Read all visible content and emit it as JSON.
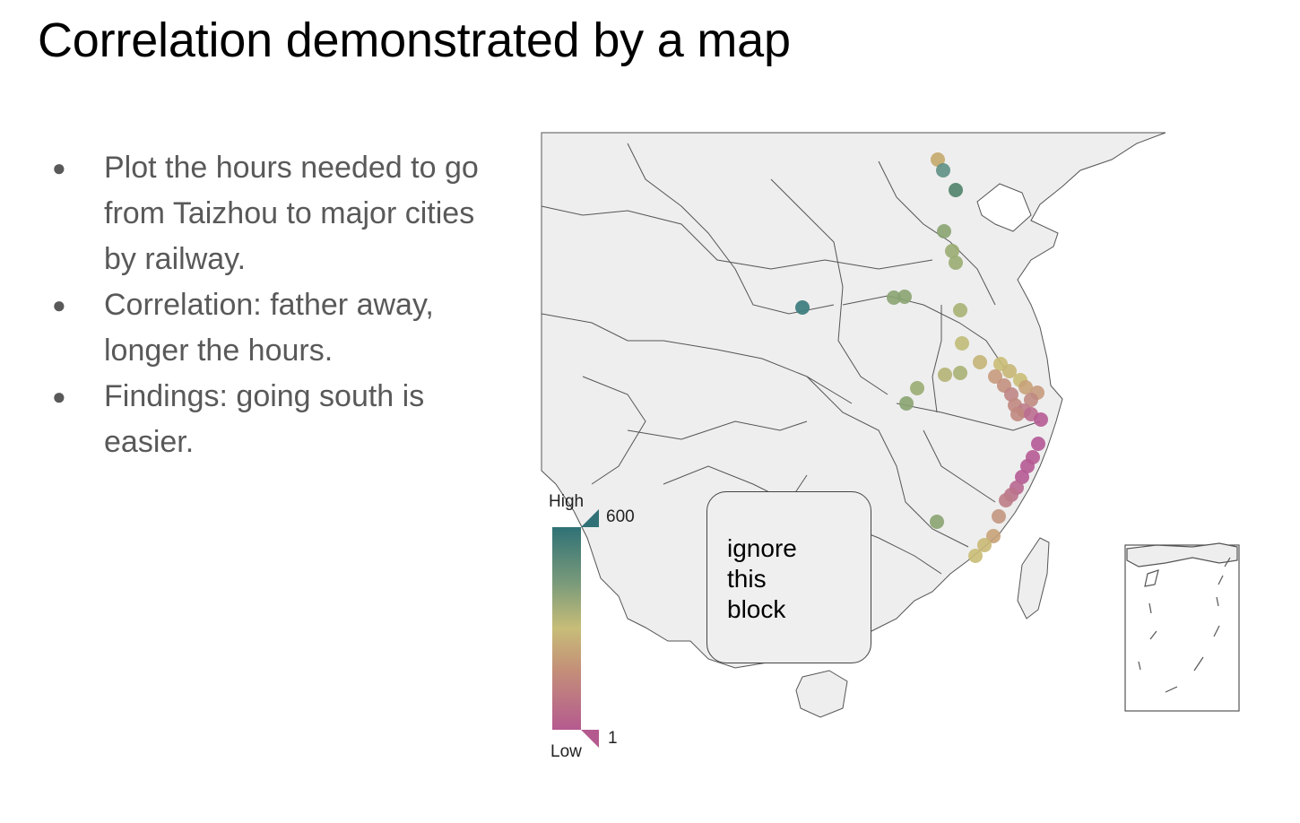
{
  "slide": {
    "title": "Correlation demonstrated by a map",
    "bullets": [
      "Plot the hours needed to go from Taizhou to major cities by railway.",
      "Correlation: father away, longer the hours.",
      "Findings: going south is easier."
    ]
  },
  "map": {
    "background_color": "#eeeeee",
    "border_color": "#555555",
    "overlay_box": {
      "text_lines": [
        "ignore",
        "this",
        "block"
      ]
    },
    "legend": {
      "high_label": "High",
      "low_label": "Low",
      "max_value": "600",
      "min_value": "1",
      "high_color": "#2f7176",
      "mid_color": "#c7bd78",
      "low_color": "#b55a8f"
    }
  }
}
